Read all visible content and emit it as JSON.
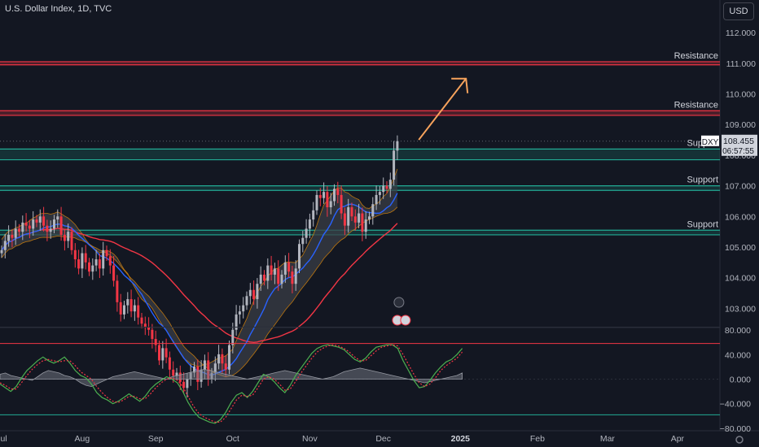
{
  "header": {
    "title": "U.S. Dollar Index, 1D, TVC",
    "currency": "USD"
  },
  "price_label": {
    "symbol": "DXY",
    "price": "108.455",
    "countdown": "06:57:55"
  },
  "colors": {
    "bg": "#131722",
    "up": "#b2b5be",
    "down": "#f23645",
    "resistance": "#f23645",
    "support": "#22ab94",
    "ma_fast": "#2962ff",
    "ma_slow": "#f23645",
    "cloud": "#ff9800",
    "arrow": "#f7a35c"
  },
  "chart_data": [
    {
      "type": "candlestick",
      "ylim": [
        102.4,
        112.8
      ],
      "y_ticks": [
        "112.000",
        "111.000",
        "110.000",
        "109.000",
        "108.000",
        "107.000",
        "106.000",
        "105.000",
        "104.000",
        "103.000"
      ],
      "y_tick_values": [
        112,
        111,
        110,
        109,
        108,
        107,
        106,
        105,
        104,
        103
      ],
      "x_ticks": [
        "Jul",
        "Aug",
        "Sep",
        "Oct",
        "Nov",
        "Dec",
        "2025",
        "Feb",
        "Mar",
        "Apr"
      ],
      "x_tick_values": [
        0,
        23,
        44,
        66,
        88,
        109,
        131,
        153,
        173,
        193
      ],
      "current_price": 108.455,
      "zones": [
        {
          "kind": "resistance",
          "label": "Resistance",
          "low": 110.95,
          "high": 111.05
        },
        {
          "kind": "resistance",
          "label": "Resistance",
          "low": 109.3,
          "high": 109.45
        },
        {
          "kind": "support",
          "label": "Support",
          "low": 107.85,
          "high": 108.2
        },
        {
          "kind": "support",
          "label": "Support",
          "low": 106.85,
          "high": 107.0
        },
        {
          "kind": "support",
          "label": "Support",
          "low": 105.4,
          "high": 105.55
        }
      ],
      "closes": [
        104.9,
        105.2,
        105.4,
        105.3,
        105.6,
        105.5,
        105.8,
        105.7,
        105.6,
        105.9,
        105.8,
        106.0,
        105.7,
        105.5,
        105.6,
        105.9,
        106.0,
        105.4,
        105.2,
        105.5,
        104.9,
        104.6,
        104.3,
        104.8,
        104.5,
        104.2,
        104.4,
        104.6,
        104.3,
        104.9,
        104.7,
        104.4,
        103.9,
        103.2,
        102.8,
        103.1,
        103.3,
        102.9,
        103.1,
        102.7,
        102.5,
        102.4,
        102.3,
        102.0,
        101.8,
        101.3,
        101.7,
        101.4,
        101.0,
        100.8,
        100.9,
        100.6,
        100.4,
        100.7,
        100.9,
        101.1,
        100.6,
        101.0,
        101.3,
        100.7,
        100.9,
        101.2,
        101.5,
        101.2,
        101.0,
        101.8,
        102.3,
        102.8,
        102.9,
        103.1,
        103.4,
        103.6,
        103.3,
        103.8,
        104.1,
        103.9,
        104.4,
        104.1,
        104.3,
        103.8,
        104.1,
        104.5,
        104.2,
        103.8,
        104.3,
        105.1,
        105.3,
        105.6,
        105.9,
        106.2,
        106.7,
        106.6,
        106.8,
        106.3,
        106.5,
        106.9,
        106.7,
        106.1,
        105.7,
        106.3,
        106.0,
        105.8,
        106.1,
        105.5,
        105.9,
        106.0,
        106.4,
        106.7,
        106.8,
        107.0,
        106.9,
        107.2,
        108.15,
        108.455
      ],
      "ma_fast_note": "blue moving average",
      "ma_slow_note": "red moving average"
    },
    {
      "type": "line",
      "ylim": [
        -84,
        84
      ],
      "y_ticks": [
        "80.000",
        "40.000",
        "0.000",
        "−40.000",
        "−80.000"
      ],
      "y_tick_values": [
        80,
        40,
        0,
        -40,
        -80
      ],
      "levels": [
        {
          "value": 58,
          "color": "#f23645"
        },
        {
          "value": -58,
          "color": "#22ab94"
        }
      ],
      "series": [
        {
          "values": [
            -8,
            -14,
            -20,
            -12,
            2,
            14,
            22,
            30,
            36,
            30,
            26,
            30,
            36,
            26,
            14,
            6,
            2,
            -8,
            -22,
            -30,
            -34,
            -40,
            -36,
            -30,
            -24,
            -30,
            -36,
            -28,
            -16,
            -8,
            -2,
            4,
            0,
            -6,
            -20,
            -38,
            -52,
            -62,
            -66,
            -70,
            -72,
            -66,
            -54,
            -38,
            -26,
            -22,
            -30,
            -20,
            -6,
            8,
            4,
            -4,
            -14,
            -22,
            -10,
            6,
            18,
            30,
            42,
            50,
            54,
            56,
            54,
            52,
            48,
            40,
            32,
            28,
            34,
            44,
            52,
            54,
            56,
            56,
            50,
            30,
            14,
            -2,
            -14,
            -12,
            -2,
            10,
            20,
            28,
            32,
            40,
            50
          ]
        },
        {
          "values": [
            -6,
            -10,
            -16,
            -16,
            -6,
            6,
            16,
            24,
            30,
            32,
            30,
            28,
            30,
            30,
            22,
            12,
            6,
            0,
            -12,
            -22,
            -30,
            -36,
            -38,
            -34,
            -28,
            -28,
            -32,
            -32,
            -24,
            -14,
            -6,
            0,
            2,
            -2,
            -12,
            -28,
            -44,
            -56,
            -62,
            -66,
            -70,
            -70,
            -62,
            -48,
            -34,
            -26,
            -28,
            -26,
            -14,
            0,
            4,
            0,
            -8,
            -18,
            -16,
            -4,
            10,
            22,
            34,
            44,
            50,
            54,
            56,
            54,
            50,
            44,
            36,
            30,
            30,
            38,
            46,
            52,
            54,
            56,
            54,
            40,
            24,
            8,
            -6,
            -12,
            -8,
            2,
            14,
            22,
            28,
            34,
            44
          ]
        },
        {
          "values": [
            8,
            10,
            6,
            4,
            2,
            0,
            -2,
            4,
            10,
            14,
            12,
            10,
            6,
            4,
            0,
            -6,
            -10,
            -12,
            -8,
            -4,
            0,
            4,
            6,
            8,
            10,
            12,
            10,
            8,
            6,
            4,
            2,
            0,
            4,
            6,
            8,
            10,
            12,
            14,
            16,
            14,
            12,
            10,
            8,
            6,
            4,
            2,
            0,
            2,
            4,
            6,
            8,
            10,
            12,
            14,
            12,
            10,
            8,
            6,
            4,
            2,
            0,
            2,
            4,
            8,
            12,
            14,
            16,
            18,
            16,
            14,
            12,
            10,
            8,
            6,
            4,
            2,
            0,
            -2,
            -4,
            -6,
            -4,
            -2,
            0,
            2,
            4,
            6,
            10
          ]
        }
      ]
    }
  ],
  "resistance_label": "Resistance",
  "support_label": "Support"
}
